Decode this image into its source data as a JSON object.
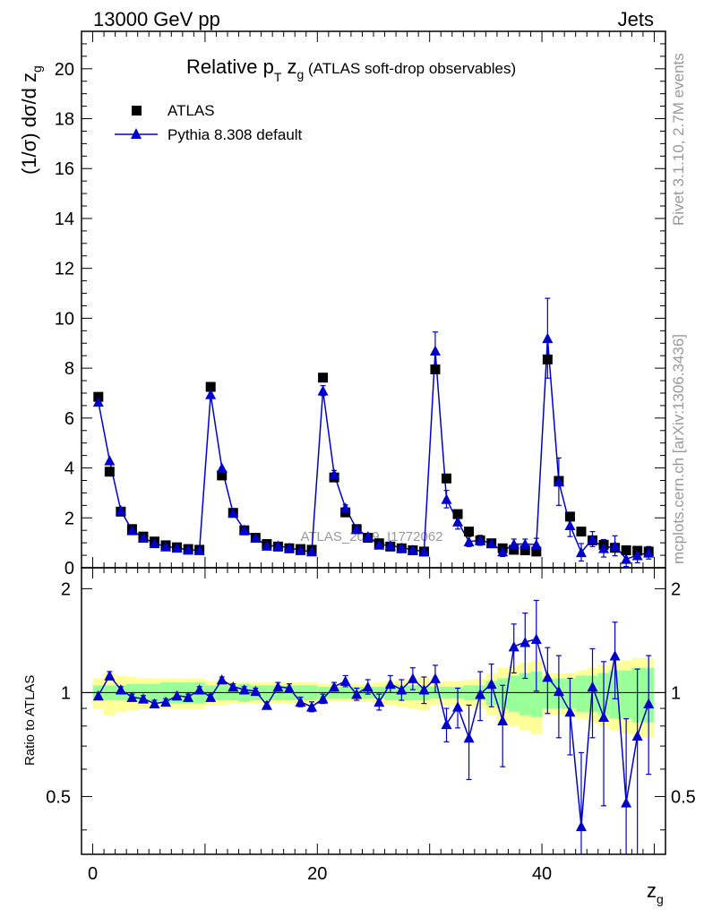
{
  "header": {
    "energy_label": "13000 GeV pp",
    "category_label": "Jets"
  },
  "side_labels": {
    "rivet": "Rivet 3.1.10,  2.7M events",
    "mcplots": "mcplots.cern.ch [arXiv:1306.3436]"
  },
  "chart_data": {
    "type": "scatter",
    "title_main": "Relative p",
    "title_sub_T": "T",
    "title_z": " z",
    "title_sub_g": "g",
    "title_suffix": " (ATLAS soft-drop observables)",
    "ylabel": "(1/σ) dσ/d z",
    "ylabel_sub": "g",
    "xlabel": "z",
    "xlabel_sub": "g",
    "ratio_ylabel": "Ratio to ATLAS",
    "watermark": "ATLAS_2019_I1772062",
    "xlim": [
      -1,
      51
    ],
    "ylim": [
      0,
      21.5
    ],
    "ratio_ylim": [
      0.34,
      2.3
    ],
    "x_ticks": [
      0,
      20,
      40
    ],
    "y_ticks": [
      0,
      2,
      4,
      6,
      8,
      10,
      12,
      14,
      16,
      18,
      20
    ],
    "ratio_ticks": [
      0.5,
      1,
      2
    ],
    "legend": {
      "atlas": "ATLAS",
      "pythia": "Pythia 8.308 default"
    },
    "colors": {
      "data": "#000000",
      "mc": "#0000cc",
      "band_inner": "#99ff99",
      "band_outer": "#ffff99"
    },
    "x": [
      0.5,
      1.5,
      2.5,
      3.5,
      4.5,
      5.5,
      6.5,
      7.5,
      8.5,
      9.5,
      10.5,
      11.5,
      12.5,
      13.5,
      14.5,
      15.5,
      16.5,
      17.5,
      18.5,
      19.5,
      20.5,
      21.5,
      22.5,
      23.5,
      24.5,
      25.5,
      26.5,
      27.5,
      28.5,
      29.5,
      30.5,
      31.5,
      32.5,
      33.5,
      34.5,
      35.5,
      36.5,
      37.5,
      38.5,
      39.5,
      40.5,
      41.5,
      42.5,
      43.5,
      44.5,
      45.5,
      46.5,
      47.5,
      48.5,
      49.5
    ],
    "series": [
      {
        "name": "ATLAS",
        "values": [
          6.85,
          3.85,
          2.25,
          1.55,
          1.25,
          1.05,
          0.9,
          0.82,
          0.75,
          0.72,
          7.25,
          3.7,
          2.2,
          1.5,
          1.2,
          0.95,
          0.85,
          0.78,
          0.75,
          0.72,
          7.62,
          3.62,
          2.22,
          1.55,
          1.2,
          0.98,
          0.85,
          0.78,
          0.7,
          0.65,
          7.95,
          3.58,
          2.15,
          1.45,
          1.1,
          0.98,
          0.78,
          0.72,
          0.7,
          0.65,
          8.35,
          3.48,
          2.05,
          1.45,
          1.1,
          0.92,
          0.8,
          0.7,
          0.68,
          0.65
        ]
      },
      {
        "name": "Pythia 8.308 default",
        "values": [
          6.65,
          4.3,
          2.3,
          1.5,
          1.2,
          0.98,
          0.85,
          0.8,
          0.72,
          0.7,
          6.95,
          4.0,
          2.2,
          1.52,
          1.2,
          0.88,
          0.88,
          0.8,
          0.7,
          0.65,
          7.1,
          3.75,
          2.4,
          1.55,
          1.25,
          0.92,
          0.9,
          0.8,
          0.72,
          0.65,
          8.7,
          2.75,
          1.85,
          1.05,
          1.1,
          0.98,
          0.65,
          0.95,
          0.95,
          0.93,
          9.2,
          3.45,
          1.7,
          0.62,
          1.15,
          0.78,
          0.88,
          0.35,
          0.5,
          0.6
        ]
      }
    ],
    "mc_errors": [
      0.05,
      0.08,
      0.05,
      0.04,
      0.04,
      0.03,
      0.03,
      0.03,
      0.03,
      0.03,
      0.12,
      0.08,
      0.06,
      0.05,
      0.05,
      0.04,
      0.04,
      0.04,
      0.04,
      0.04,
      0.2,
      0.15,
      0.12,
      0.08,
      0.08,
      0.06,
      0.06,
      0.06,
      0.06,
      0.06,
      0.75,
      0.35,
      0.3,
      0.2,
      0.2,
      0.15,
      0.2,
      0.2,
      0.2,
      0.25,
      1.6,
      0.95,
      0.45,
      0.35,
      0.3,
      0.35,
      0.4,
      0.3,
      0.3,
      0.25
    ],
    "ratio": {
      "values": [
        0.98,
        1.12,
        1.02,
        0.97,
        0.96,
        0.93,
        0.94,
        0.98,
        0.97,
        1.02,
        0.97,
        1.09,
        1.04,
        1.02,
        1.01,
        0.92,
        1.04,
        1.03,
        0.94,
        0.91,
        0.96,
        1.04,
        1.08,
        0.99,
        1.04,
        0.94,
        1.06,
        1.02,
        1.1,
        1.02,
        1.1,
        0.81,
        0.91,
        0.74,
        0.99,
        1.06,
        0.83,
        1.36,
        1.4,
        1.43,
        1.11,
        1.01,
        0.88,
        0.41,
        1.04,
        0.85,
        1.28,
        0.48,
        0.75,
        0.93
      ],
      "errors": [
        0.02,
        0.03,
        0.02,
        0.02,
        0.02,
        0.02,
        0.02,
        0.02,
        0.02,
        0.02,
        0.02,
        0.02,
        0.02,
        0.02,
        0.02,
        0.02,
        0.03,
        0.03,
        0.03,
        0.03,
        0.03,
        0.03,
        0.04,
        0.04,
        0.05,
        0.05,
        0.06,
        0.07,
        0.08,
        0.09,
        0.1,
        0.09,
        0.12,
        0.18,
        0.16,
        0.15,
        0.22,
        0.22,
        0.3,
        0.42,
        0.24,
        0.27,
        0.22,
        0.26,
        0.3,
        0.38,
        0.32,
        0.36,
        0.42,
        0.35
      ],
      "band_inner": [
        0.05,
        0.05,
        0.05,
        0.06,
        0.06,
        0.06,
        0.07,
        0.07,
        0.07,
        0.07,
        0.05,
        0.05,
        0.05,
        0.06,
        0.05,
        0.05,
        0.05,
        0.05,
        0.05,
        0.05,
        0.04,
        0.04,
        0.04,
        0.04,
        0.04,
        0.04,
        0.05,
        0.05,
        0.05,
        0.05,
        0.04,
        0.04,
        0.04,
        0.05,
        0.05,
        0.08,
        0.1,
        0.12,
        0.14,
        0.15,
        0.1,
        0.1,
        0.1,
        0.12,
        0.12,
        0.14,
        0.16,
        0.16,
        0.18,
        0.18
      ],
      "band_outer": [
        0.1,
        0.14,
        0.12,
        0.11,
        0.1,
        0.1,
        0.1,
        0.1,
        0.1,
        0.1,
        0.08,
        0.08,
        0.07,
        0.07,
        0.07,
        0.07,
        0.07,
        0.07,
        0.07,
        0.07,
        0.06,
        0.06,
        0.06,
        0.06,
        0.06,
        0.07,
        0.08,
        0.09,
        0.1,
        0.11,
        0.08,
        0.08,
        0.08,
        0.09,
        0.1,
        0.14,
        0.18,
        0.2,
        0.22,
        0.24,
        0.14,
        0.14,
        0.14,
        0.16,
        0.18,
        0.2,
        0.22,
        0.24,
        0.26,
        0.26
      ]
    }
  }
}
